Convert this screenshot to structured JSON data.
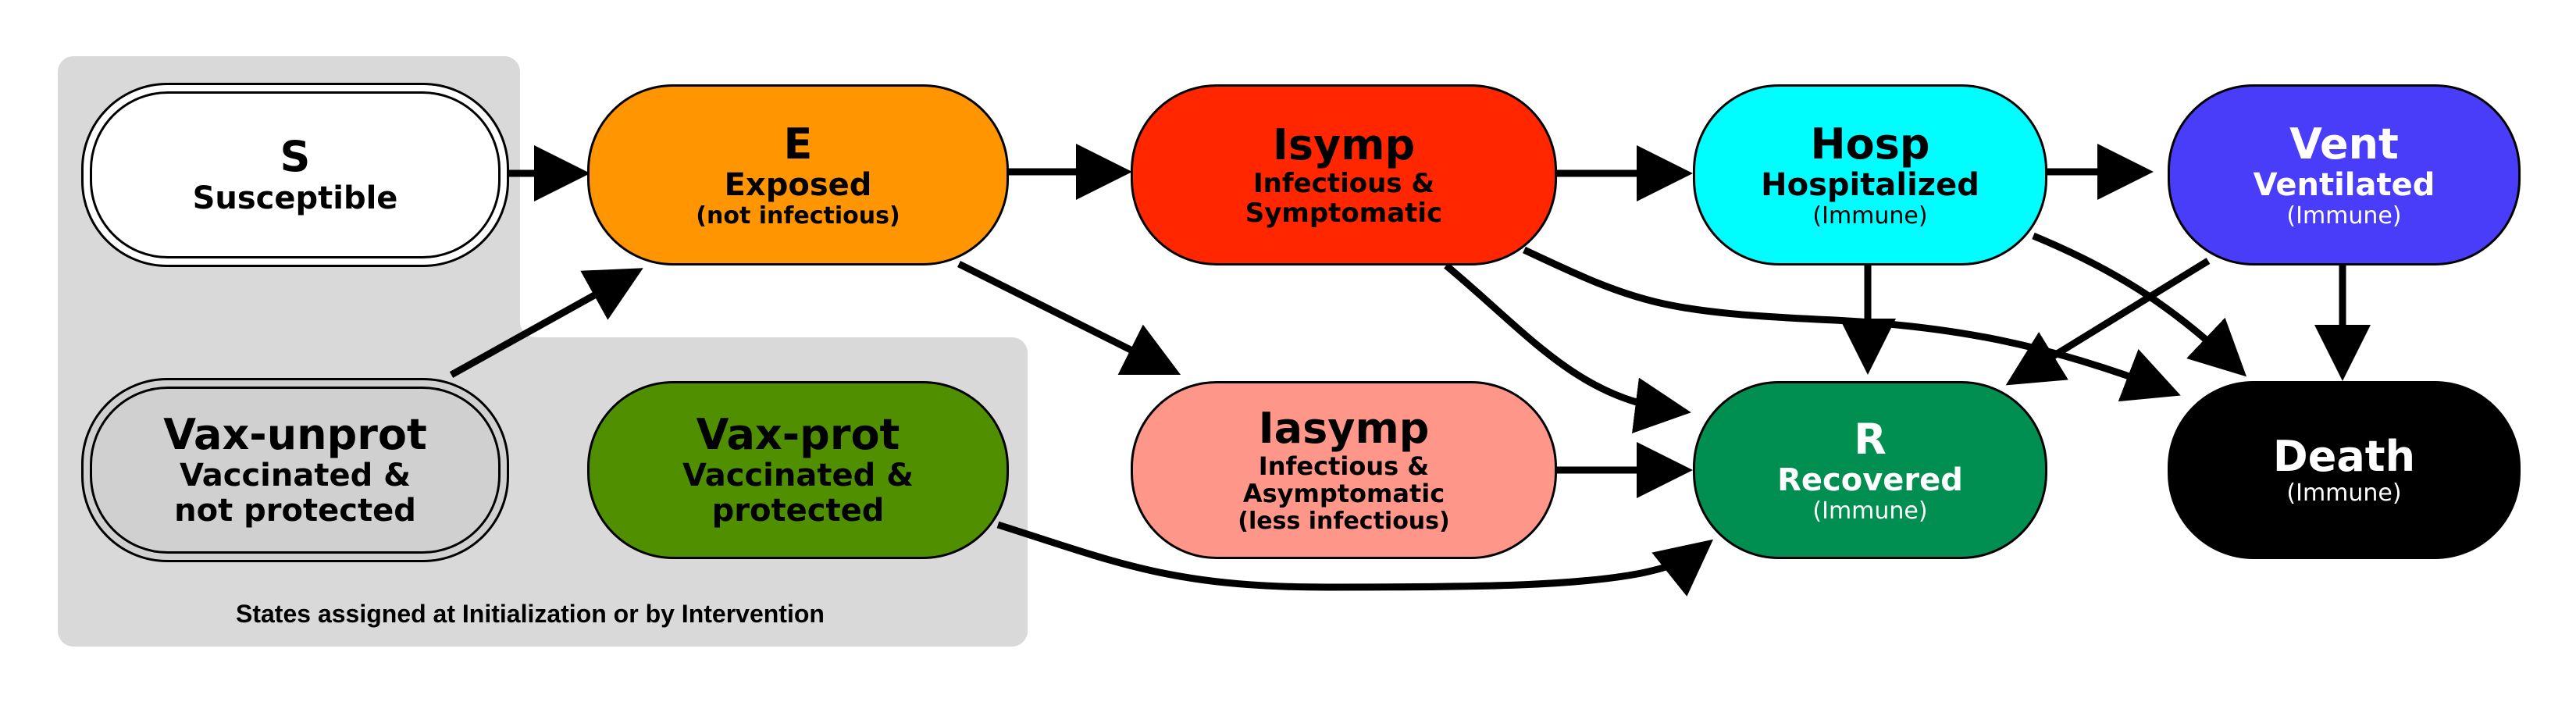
{
  "panel": {
    "caption": "States assigned at Initialization or by Intervention",
    "color": "#d9d9d9"
  },
  "nodes": {
    "S": {
      "abbr": "S",
      "name": "Susceptible",
      "color": "#ffffff"
    },
    "E": {
      "abbr": "E",
      "name": "Exposed",
      "note": "(not infectious)",
      "color": "#ff9500"
    },
    "Isymp": {
      "abbr": "Isymp",
      "name_line1": "Infectious &",
      "name_line2": "Symptomatic",
      "color": "#ff2600"
    },
    "Hosp": {
      "abbr": "Hosp",
      "name": "Hospitalized",
      "note": "(Immune)",
      "color": "#00fdff"
    },
    "Vent": {
      "abbr": "Vent",
      "name": "Ventilated",
      "note": "(Immune)",
      "color": "#4a3dfa"
    },
    "VaxUnprot": {
      "abbr": "Vax-unprot",
      "name_line1": "Vaccinated &",
      "name_line2": "not protected",
      "color": "#d0d0d0"
    },
    "VaxProt": {
      "abbr": "Vax-prot",
      "name_line1": "Vaccinated &",
      "name_line2": "protected",
      "color": "#4f8f00"
    },
    "Iasymp": {
      "abbr": "Iasymp",
      "name_line1": "Infectious &",
      "name_line2": "Asymptomatic",
      "note": "(less infectious)",
      "color": "#ff968a"
    },
    "R": {
      "abbr": "R",
      "name": "Recovered",
      "note": "(Immune)",
      "color": "#008f51"
    },
    "Death": {
      "abbr": "Death",
      "note": "(Immune)",
      "color": "#000000"
    }
  },
  "edges": [
    [
      "S",
      "E"
    ],
    [
      "E",
      "Isymp"
    ],
    [
      "Isymp",
      "Hosp"
    ],
    [
      "Hosp",
      "Vent"
    ],
    [
      "VaxUnprot",
      "E"
    ],
    [
      "E",
      "Iasymp"
    ],
    [
      "Iasymp",
      "R"
    ],
    [
      "Isymp",
      "R"
    ],
    [
      "Isymp",
      "Death"
    ],
    [
      "Hosp",
      "R"
    ],
    [
      "Hosp",
      "Death"
    ],
    [
      "Vent",
      "R"
    ],
    [
      "Vent",
      "Death"
    ],
    [
      "VaxProt",
      "R"
    ]
  ]
}
